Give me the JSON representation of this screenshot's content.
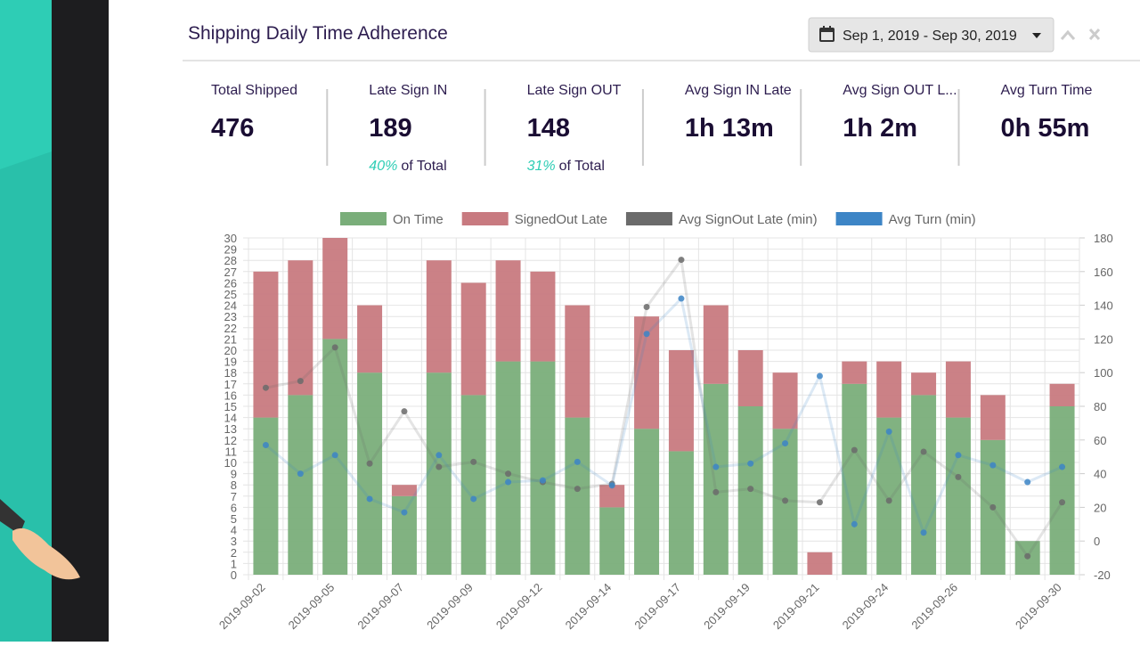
{
  "header": {
    "title": "Shipping Daily Time Adherence",
    "date_range": "Sep 1, 2019 - Sep 30, 2019"
  },
  "kpis": [
    {
      "label": "Total Shipped",
      "value": 476
    },
    {
      "label": "Late Sign IN",
      "value": 189,
      "pct": "40%",
      "note": "of Total"
    },
    {
      "label": "Late Sign OUT",
      "value": 148,
      "pct": "31%",
      "note": "of Total"
    },
    {
      "label": "Avg Sign IN Late",
      "value": "1h 13m"
    },
    {
      "label": "Avg Sign OUT L...",
      "value": "1h 2m"
    },
    {
      "label": "Avg Turn Time",
      "value": "0h 55m"
    }
  ],
  "chart_data": {
    "type": "bar",
    "stacked": true,
    "grid": true,
    "legend": "top",
    "categories": [
      "2019-09-02",
      null,
      "2019-09-05",
      null,
      "2019-09-07",
      null,
      "2019-09-09",
      null,
      "2019-09-12",
      null,
      "2019-09-14",
      null,
      "2019-09-17",
      null,
      "2019-09-19",
      null,
      "2019-09-21",
      null,
      "2019-09-24",
      null,
      "2019-09-26",
      null,
      null,
      "2019-09-30"
    ],
    "series": [
      {
        "name": "On Time",
        "type": "bar",
        "color": "#7aae7a",
        "values": [
          14,
          16,
          21,
          18,
          7,
          18,
          16,
          19,
          19,
          14,
          6,
          13,
          11,
          17,
          15,
          13,
          0,
          17,
          14,
          16,
          14,
          12,
          3,
          15
        ]
      },
      {
        "name": "SignedOut Late",
        "type": "bar",
        "color": "#c87a80",
        "values": [
          13,
          12,
          9,
          6,
          1,
          10,
          10,
          9,
          8,
          10,
          2,
          10,
          9,
          7,
          5,
          5,
          2,
          2,
          5,
          2,
          5,
          4,
          0,
          2
        ]
      },
      {
        "name": "Avg SignOut Late (min)",
        "type": "line",
        "axis": "y2",
        "color": "#6b6b6b",
        "values": [
          91,
          95,
          115,
          46,
          77,
          44,
          47,
          40,
          35,
          31,
          34,
          139,
          167,
          29,
          31,
          24,
          23,
          54,
          24,
          53,
          38,
          20,
          -9,
          23
        ]
      },
      {
        "name": "Avg Turn (min)",
        "type": "line",
        "axis": "y2",
        "color": "#3d85c6",
        "values": [
          57,
          40,
          51,
          25,
          17,
          51,
          25,
          35,
          36,
          47,
          33,
          123,
          144,
          44,
          46,
          58,
          98,
          10,
          65,
          5,
          51,
          45,
          35,
          44
        ]
      }
    ],
    "ylim": [
      0,
      30
    ],
    "yticks": [
      0,
      1,
      2,
      3,
      4,
      5,
      6,
      7,
      8,
      9,
      10,
      11,
      12,
      13,
      14,
      15,
      16,
      17,
      18,
      19,
      20,
      21,
      22,
      23,
      24,
      25,
      26,
      27,
      28,
      29,
      30
    ],
    "y2lim": [
      -20,
      180
    ],
    "y2ticks": [
      -20,
      0,
      20,
      40,
      60,
      80,
      100,
      120,
      140,
      160,
      180
    ]
  }
}
